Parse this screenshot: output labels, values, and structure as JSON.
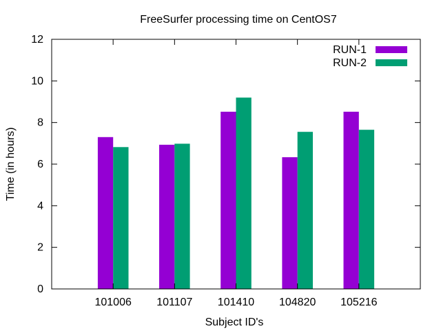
{
  "chart_data": {
    "type": "bar",
    "title": "FreeSurfer processing time on CentOS7",
    "xlabel": "Subject ID's",
    "ylabel": "Time (in hours)",
    "categories": [
      "101006",
      "101107",
      "101410",
      "104820",
      "105216"
    ],
    "series": [
      {
        "name": "RUN-1",
        "color": "#9400d3",
        "values": [
          7.3,
          6.93,
          8.52,
          6.33,
          8.52
        ]
      },
      {
        "name": "RUN-2",
        "color": "#009e73",
        "values": [
          6.82,
          6.98,
          9.2,
          7.55,
          7.65
        ]
      }
    ],
    "ylim": [
      0,
      12
    ],
    "yticks": [
      "0",
      "2",
      "4",
      "6",
      "8",
      "10",
      "12"
    ],
    "grid": false,
    "legend_position": "top-right"
  }
}
